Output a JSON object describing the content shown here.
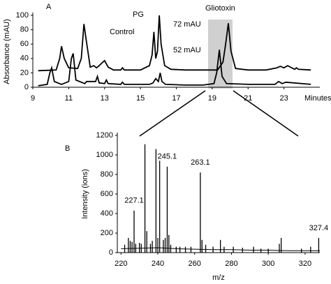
{
  "chart_data": [
    {
      "type": "line",
      "panel": "A",
      "y_label": "Absorbance (mAU)",
      "x_label": "Minutes",
      "xlim": [
        9,
        25
      ],
      "xticks": [
        9,
        11,
        13,
        15,
        17,
        19,
        21,
        23
      ],
      "ylim": [
        0,
        100
      ],
      "yticks": [
        0,
        20,
        40,
        60,
        80,
        100
      ],
      "annotations": [
        "PG",
        "Control",
        "Gliotoxin",
        "72 mAU",
        "52 mAU"
      ],
      "series": [
        {
          "color": "#000000",
          "x": [
            9.3,
            10.3,
            10.5,
            10.6,
            10.75,
            11.0,
            11.5,
            11.7,
            11.85,
            11.95,
            12.2,
            12.4,
            12.55,
            12.7,
            12.9,
            13.0,
            13.2,
            13.5,
            13.9,
            14.0,
            14.1,
            15.0,
            15.5,
            15.65,
            15.75,
            15.85,
            15.95,
            16.05,
            16.15,
            16.35,
            16.7,
            17.5,
            18.5,
            19.3,
            19.6,
            19.75,
            19.9,
            20.05,
            20.3,
            21.0,
            22.0,
            22.6,
            22.8,
            23.0,
            23.2,
            23.6,
            23.7,
            23.8,
            24.5
          ],
          "values": [
            23,
            24,
            40,
            57,
            40,
            27,
            26,
            40,
            88,
            70,
            28,
            30,
            27,
            30,
            35,
            37,
            28,
            24,
            24,
            27,
            24,
            24,
            30,
            45,
            77,
            40,
            50,
            100,
            60,
            30,
            25,
            24,
            24,
            24,
            35,
            60,
            89,
            50,
            26,
            24,
            24,
            27,
            29,
            27,
            30,
            25,
            27,
            25,
            24
          ]
        },
        {
          "color": "#000000",
          "x": [
            9.3,
            9.8,
            9.95,
            10.05,
            10.2,
            10.6,
            11.0,
            11.15,
            11.25,
            11.4,
            11.9,
            12.0,
            12.5,
            12.6,
            12.7,
            13.0,
            13.1,
            13.2,
            13.9,
            14.0,
            14.1,
            15.5,
            15.7,
            15.85,
            16.0,
            16.1,
            16.2,
            16.4,
            17.5,
            18.5,
            19.1,
            19.25,
            19.4,
            19.55,
            19.8,
            21.0,
            22.5,
            22.7,
            22.9,
            23.1,
            24.5
          ],
          "values": [
            2,
            4,
            20,
            27,
            8,
            4,
            8,
            40,
            47,
            10,
            5,
            8,
            8,
            15,
            6,
            5,
            10,
            5,
            4,
            7,
            4,
            4,
            6,
            12,
            8,
            20,
            8,
            4,
            3,
            3,
            5,
            20,
            52,
            15,
            5,
            4,
            4,
            8,
            5,
            7,
            4
          ]
        }
      ]
    },
    {
      "type": "spectrum",
      "panel": "B",
      "y_label": "Intensity (ions)",
      "x_label": "m/z",
      "xlim": [
        218,
        328
      ],
      "xticks": [
        220,
        240,
        260,
        280,
        300,
        320
      ],
      "ylim": [
        0,
        1200
      ],
      "yticks": [
        0,
        200,
        400,
        600,
        800,
        1000,
        1200
      ],
      "peaks": {
        "x": [
          222,
          224,
          225,
          226,
          227.1,
          228,
          230,
          231,
          233,
          234,
          236,
          237,
          239,
          240,
          241,
          243,
          244,
          245.1,
          246,
          247,
          250,
          252,
          255,
          258,
          263.1,
          264,
          266,
          270,
          274,
          276,
          281,
          286,
          292,
          296,
          300,
          306,
          307,
          318,
          323,
          327.4
        ],
        "values": [
          80,
          150,
          120,
          110,
          430,
          90,
          100,
          90,
          1110,
          220,
          90,
          120,
          1060,
          150,
          940,
          130,
          150,
          880,
          180,
          80,
          60,
          60,
          60,
          60,
          820,
          130,
          80,
          60,
          130,
          60,
          60,
          50,
          60,
          40,
          40,
          90,
          150,
          40,
          60,
          150
        ]
      },
      "peak_labels": [
        227.1,
        245.1,
        263.1,
        327.4
      ],
      "baseline": {
        "x": [
          220,
          230,
          240,
          250,
          260,
          270,
          280,
          290,
          300,
          310,
          320,
          328
        ],
        "values": [
          40,
          45,
          50,
          40,
          35,
          30,
          30,
          25,
          25,
          20,
          20,
          20
        ]
      }
    }
  ]
}
